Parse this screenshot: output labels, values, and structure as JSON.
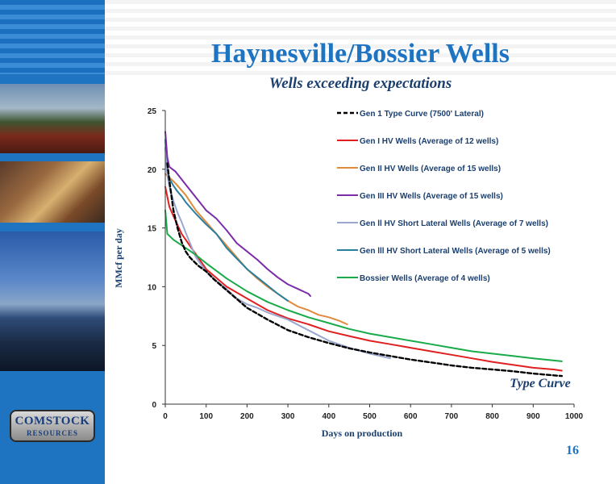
{
  "slide": {
    "title": "Haynesville/Bossier Wells",
    "subtitle": "Wells exceeding expectations",
    "page_number": "16",
    "logo_line1": "COMSTOCK",
    "logo_line2": "RESOURCES",
    "colors": {
      "title": "#1f74c2",
      "subtitle": "#1b3f6e",
      "sidebar": "#1f74c2"
    }
  },
  "chart_data": {
    "type": "line",
    "title": "",
    "xlabel": "Days on production",
    "ylabel": "MMcf per day",
    "xlim": [
      0,
      1000
    ],
    "ylim": [
      0,
      25
    ],
    "xticks": [
      0,
      100,
      200,
      300,
      400,
      500,
      600,
      700,
      800,
      900,
      1000
    ],
    "yticks": [
      0,
      5,
      10,
      15,
      20,
      25
    ],
    "grid": false,
    "legend_position": "top-right",
    "annotation": "Type Curve",
    "series": [
      {
        "name": "Gen 1 Type Curve (7500' Lateral)",
        "color": "#000000",
        "dashed": true,
        "x": [
          5,
          10,
          20,
          30,
          40,
          50,
          60,
          80,
          100,
          120,
          140,
          160,
          180,
          200,
          250,
          300,
          350,
          400,
          450,
          500,
          550,
          600,
          650,
          700,
          750,
          800,
          850,
          900,
          950,
          970
        ],
        "y": [
          20.5,
          19,
          16.5,
          15,
          13.8,
          13,
          12.5,
          11.8,
          11.3,
          10.6,
          10,
          9.4,
          8.8,
          8.2,
          7.2,
          6.3,
          5.7,
          5.2,
          4.75,
          4.4,
          4.1,
          3.8,
          3.55,
          3.3,
          3.1,
          2.95,
          2.8,
          2.6,
          2.45,
          2.4
        ]
      },
      {
        "name": "Gen I HV Wells (Average of 12 wells)",
        "color": "#e02020",
        "dashed": false,
        "x": [
          0,
          10,
          20,
          40,
          60,
          80,
          100,
          150,
          200,
          250,
          300,
          350,
          400,
          450,
          500,
          550,
          600,
          650,
          700,
          750,
          800,
          850,
          900,
          950,
          970
        ],
        "y": [
          18.5,
          16.8,
          16,
          14.5,
          13.5,
          12.5,
          11.5,
          10,
          9,
          8,
          7.3,
          6.8,
          6.2,
          5.8,
          5.4,
          5.1,
          4.8,
          4.5,
          4.2,
          3.9,
          3.6,
          3.35,
          3.1,
          2.95,
          2.85
        ]
      },
      {
        "name": "Gen II HV Wells (Average of 15 wells)",
        "color": "#e08a3c",
        "dashed": false,
        "x": [
          0,
          10,
          25,
          50,
          75,
          100,
          125,
          150,
          175,
          200,
          225,
          250,
          275,
          300,
          325,
          350,
          375,
          400,
          425,
          445
        ],
        "y": [
          19.6,
          19.3,
          18.8,
          17.8,
          16.5,
          15.5,
          14.5,
          13.5,
          12.5,
          11.5,
          10.7,
          10,
          9.4,
          8.8,
          8.3,
          8,
          7.6,
          7.4,
          7.1,
          6.8
        ]
      },
      {
        "name": "Gen III HV Wells (Average of 15 wells)",
        "color": "#7b2ca8",
        "dashed": false,
        "x": [
          0,
          5,
          10,
          25,
          50,
          75,
          100,
          125,
          150,
          175,
          200,
          225,
          250,
          275,
          300,
          325,
          350,
          355
        ],
        "y": [
          23.2,
          21,
          20.2,
          19.8,
          18.7,
          17.6,
          16.5,
          15.8,
          14.8,
          13.7,
          13,
          12.3,
          11.5,
          10.8,
          10.2,
          9.8,
          9.4,
          9.2
        ]
      },
      {
        "name": "Gen ll HV Short Lateral Wells (Average of 7 wells)",
        "color": "#9aa8d0",
        "dashed": false,
        "x": [
          0,
          5,
          10,
          20,
          30,
          40,
          50,
          75,
          100,
          125,
          150,
          175,
          200,
          225,
          250,
          300,
          350,
          400,
          450,
          500,
          550
        ],
        "y": [
          21.8,
          19.5,
          18.5,
          17.3,
          16.3,
          15.5,
          14.6,
          12.5,
          11.3,
          10.5,
          9.8,
          9,
          8.5,
          8.2,
          7.8,
          7.2,
          6.3,
          5.4,
          4.8,
          4.3,
          3.9
        ]
      },
      {
        "name": "Gen lll HV Short Lateral Wells (Average of 5 wells)",
        "color": "#2a7f9e",
        "dashed": false,
        "x": [
          0,
          5,
          10,
          20,
          30,
          40,
          50,
          75,
          100,
          125,
          150,
          175,
          200,
          225,
          250,
          275,
          300
        ],
        "y": [
          22.5,
          20,
          19.2,
          18.6,
          18.1,
          17.7,
          17.2,
          16.2,
          15.3,
          14.5,
          13.3,
          12.4,
          11.5,
          10.8,
          10.1,
          9.4,
          8.8
        ]
      },
      {
        "name": "Bossier Wells (Average of 4 wells)",
        "color": "#1aaa4a",
        "dashed": false,
        "x": [
          0,
          5,
          20,
          50,
          75,
          100,
          150,
          200,
          250,
          300,
          350,
          400,
          450,
          500,
          550,
          600,
          650,
          700,
          750,
          800,
          850,
          900,
          970
        ],
        "y": [
          16.5,
          14.5,
          14,
          13.3,
          12.7,
          12,
          10.7,
          9.6,
          8.7,
          8,
          7.4,
          6.9,
          6.4,
          6,
          5.7,
          5.4,
          5.1,
          4.8,
          4.5,
          4.3,
          4.1,
          3.9,
          3.65
        ]
      }
    ]
  }
}
